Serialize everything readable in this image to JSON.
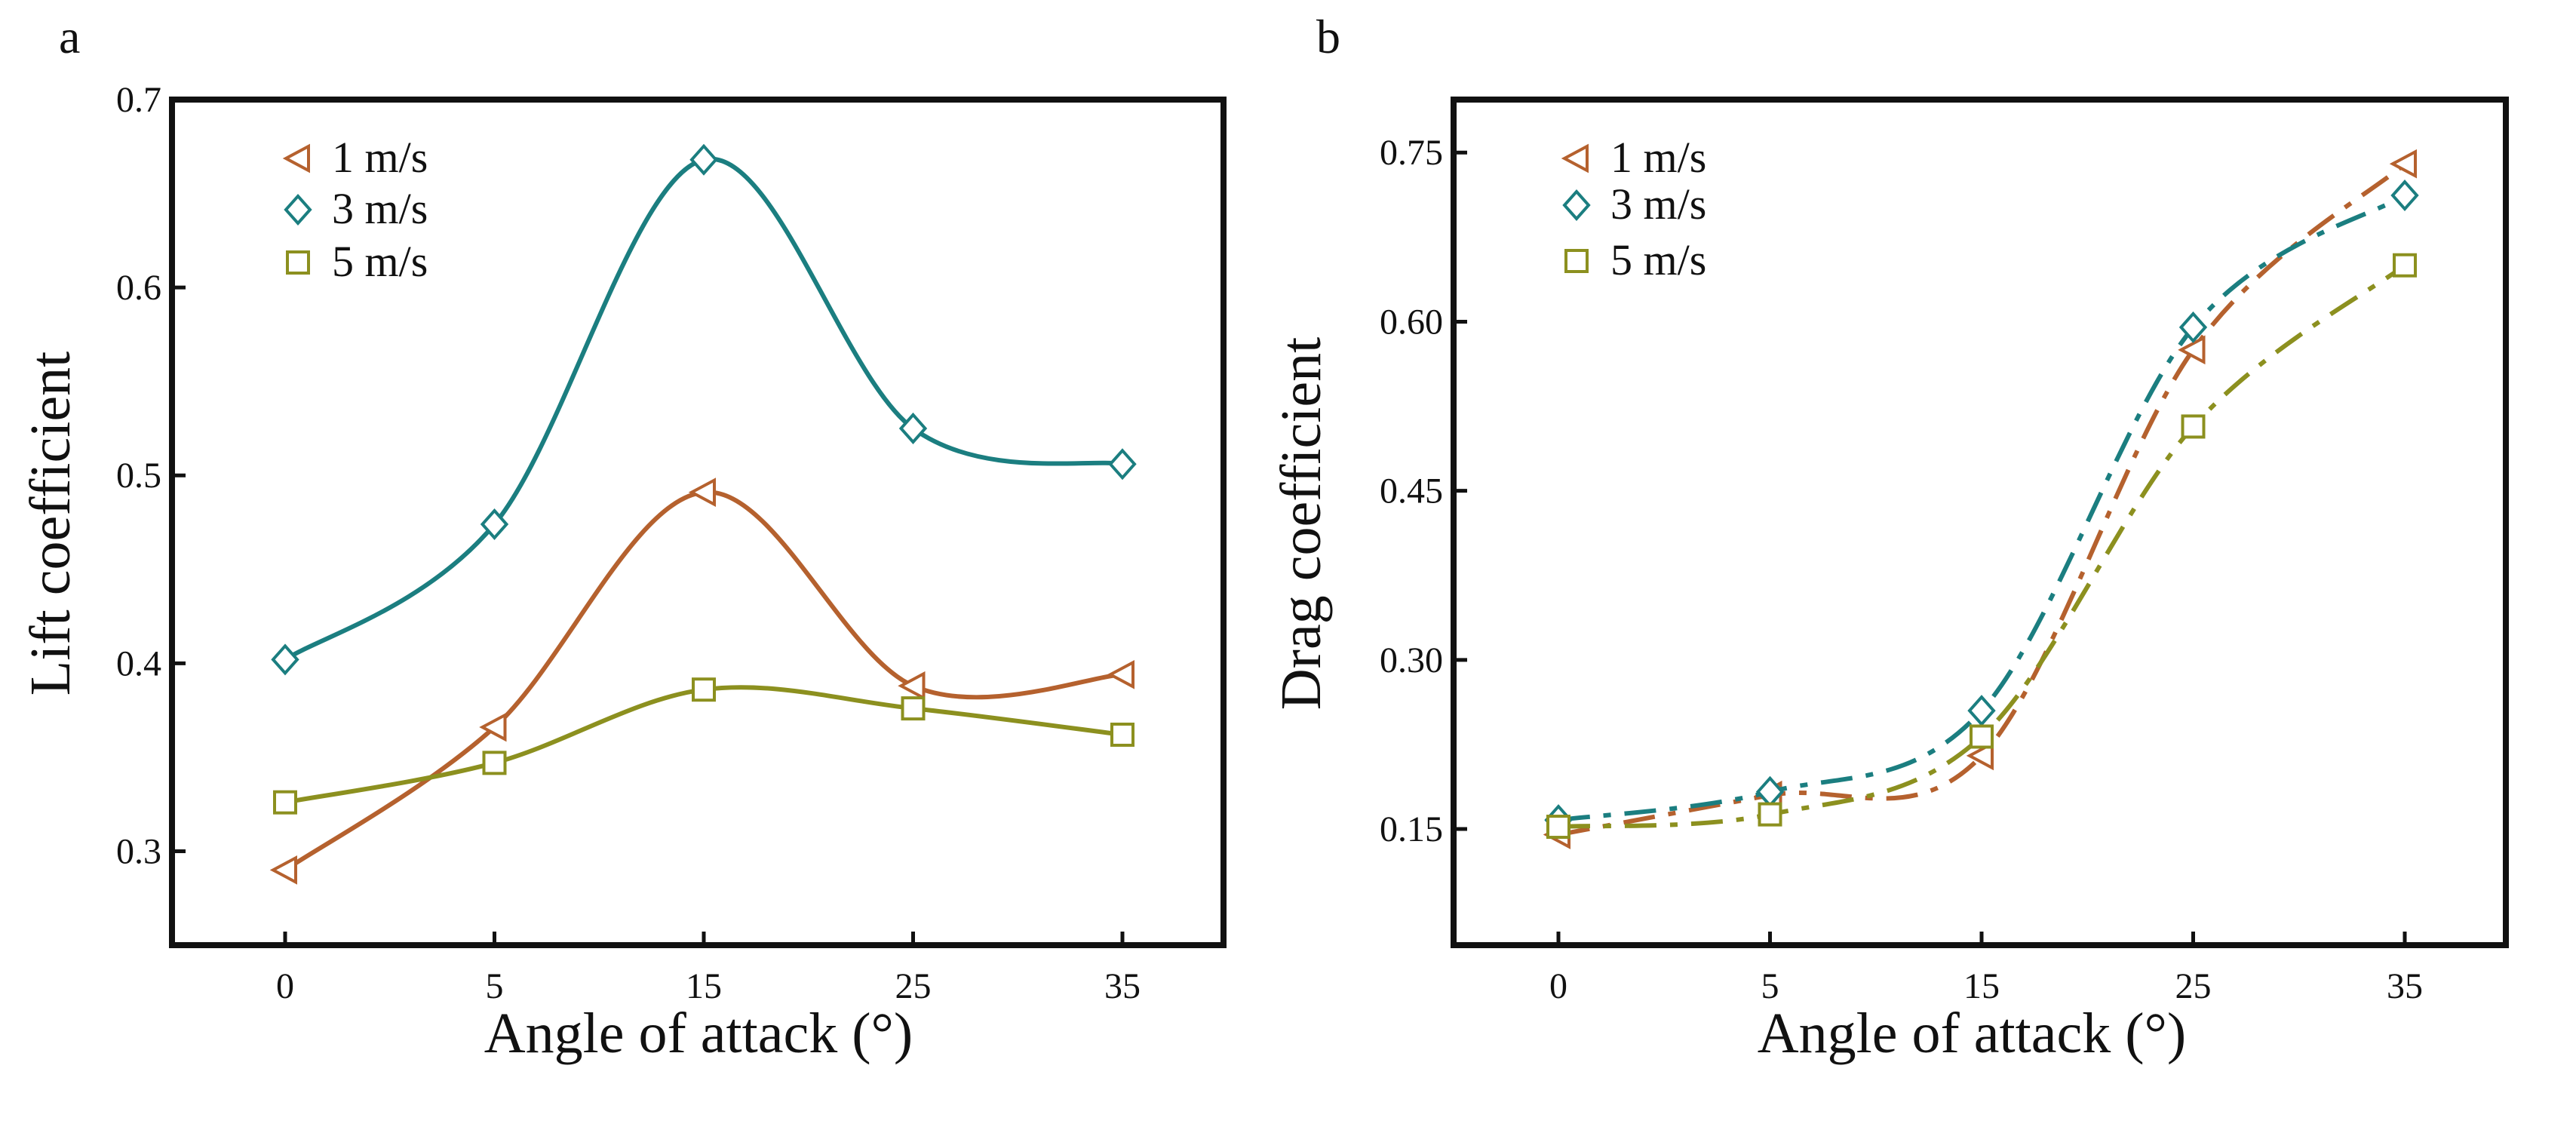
{
  "colors": {
    "1 m/s": "#b5612e",
    "3 m/s": "#1b7e80",
    "5 m/s": "#8c901f",
    "axis": "#111111"
  },
  "chart_data": [
    {
      "panel_label": "a",
      "type": "line",
      "line_style": "solid-smooth",
      "xlabel": "Angle of attack (°)",
      "ylabel": "Lift coefficient",
      "categories": [
        "0",
        "5",
        "15",
        "25",
        "35"
      ],
      "ylim": [
        0.25,
        0.7
      ],
      "yticks": [
        0.3,
        0.4,
        0.5,
        0.6,
        0.7
      ],
      "ytick_labels": [
        "0.3",
        "0.4",
        "0.5",
        "0.6",
        "0.7"
      ],
      "legend_position": "top-left",
      "series": [
        {
          "name": "1 m/s",
          "marker": "triangle-left",
          "values": [
            0.29,
            0.366,
            0.491,
            0.388,
            0.394
          ]
        },
        {
          "name": "3 m/s",
          "marker": "diamond",
          "values": [
            0.402,
            0.474,
            0.668,
            0.525,
            0.506
          ]
        },
        {
          "name": "5 m/s",
          "marker": "square",
          "values": [
            0.326,
            0.347,
            0.386,
            0.376,
            0.362
          ]
        }
      ]
    },
    {
      "panel_label": "b",
      "type": "line",
      "line_style": "dash-dot-smooth",
      "xlabel": "Angle of attack (°)",
      "ylabel": "Drag coefficient",
      "categories": [
        "0",
        "5",
        "15",
        "25",
        "35"
      ],
      "ylim": [
        0.047,
        0.797
      ],
      "yticks": [
        0.15,
        0.3,
        0.45,
        0.6,
        0.75
      ],
      "ytick_labels": [
        "0.15",
        "0.30",
        "0.45",
        "0.60",
        "0.75"
      ],
      "legend_position": "top-left",
      "series": [
        {
          "name": "1 m/s",
          "marker": "triangle-left",
          "values": [
            0.145,
            0.18,
            0.215,
            0.575,
            0.74
          ]
        },
        {
          "name": "3 m/s",
          "marker": "diamond",
          "values": [
            0.158,
            0.183,
            0.255,
            0.595,
            0.712
          ]
        },
        {
          "name": "5 m/s",
          "marker": "square",
          "values": [
            0.152,
            0.163,
            0.232,
            0.507,
            0.65
          ]
        }
      ]
    }
  ]
}
